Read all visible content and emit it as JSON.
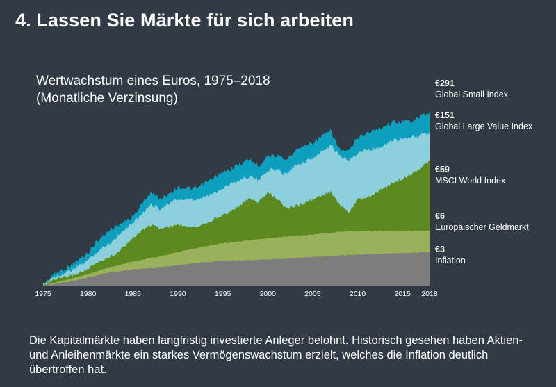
{
  "slide_title": "4. Lassen Sie Märkte für sich arbeiten",
  "caption": "Die Kapitalmärkte haben langfristig investierte Anleger belohnt. Historisch gesehen haben Aktien- und Anleihenmärkte ein starkes Vermögenswachstum erzielt, welches die Inflation deutlich übertroffen hat.",
  "colors": {
    "background": "#323b45",
    "small": "#0e9fbe",
    "large_value": "#8ccfdd",
    "msci": "#5c8a1f",
    "geldmarkt": "#98b15a",
    "inflation": "#7d7d7d"
  },
  "chart_data": {
    "type": "area",
    "title_line1": "Wertwachstum eines Euros, 1975–2018",
    "title_line2": "(Monatliche Verzinsung)",
    "x_ticks": [
      "1975",
      "1980",
      "1985",
      "1990",
      "1995",
      "2000",
      "2005",
      "2010",
      "2015",
      "2018"
    ],
    "xlim": [
      1975,
      2018
    ],
    "stacking": "overlapping",
    "legend_placement": "right",
    "grid": false,
    "series": [
      {
        "name": "Global Small Index",
        "end_label": "€291",
        "color_key": "small",
        "x": [
          1975,
          1976,
          1978,
          1980,
          1981,
          1983,
          1984,
          1985,
          1986,
          1987,
          1988,
          1990,
          1992,
          1994,
          1996,
          1998,
          1999,
          2000,
          2001,
          2002,
          2003,
          2005,
          2007,
          2008,
          2009,
          2010,
          2011,
          2012,
          2014,
          2016,
          2018
        ],
        "y": [
          1,
          1.4,
          1.9,
          2.9,
          4.3,
          7.0,
          7.9,
          9.5,
          14.5,
          21.5,
          16.9,
          24.9,
          23.6,
          34.0,
          46.8,
          62.3,
          50.2,
          71.5,
          69.3,
          60.3,
          83.9,
          108.7,
          157.0,
          85.4,
          79.1,
          128.1,
          147.5,
          162.0,
          211.7,
          218.8,
          291
        ]
      },
      {
        "name": "Global Large Value Index",
        "end_label": "€151",
        "color_key": "large_value",
        "x": [
          1975,
          1976,
          1978,
          1980,
          1981,
          1983,
          1984,
          1985,
          1986,
          1987,
          1988,
          1990,
          1992,
          1994,
          1996,
          1998,
          1999,
          2000,
          2001,
          2002,
          2003,
          2005,
          2007,
          2008,
          2009,
          2010,
          2011,
          2012,
          2014,
          2016,
          2018
        ],
        "y": [
          1,
          1.3,
          1.6,
          2.3,
          3.0,
          4.6,
          6.3,
          7.8,
          10.6,
          14.1,
          12.5,
          16.9,
          16.1,
          20.6,
          28.6,
          36.0,
          31.3,
          43.9,
          44.8,
          37.8,
          50.9,
          64.4,
          97.6,
          68.5,
          61.9,
          75.5,
          85.3,
          88.5,
          118.3,
          126.2,
          151
        ]
      },
      {
        "name": "MSCI World Index",
        "end_label": "€59",
        "color_key": "msci",
        "x": [
          1975,
          1976,
          1978,
          1980,
          1981,
          1983,
          1984,
          1985,
          1986,
          1987,
          1988,
          1990,
          1992,
          1994,
          1996,
          1998,
          1999,
          2000,
          2001,
          2002,
          2003,
          2005,
          2007,
          2008,
          2009,
          2010,
          2011,
          2012,
          2014,
          2016,
          2018
        ],
        "y": [
          1,
          1.2,
          1.35,
          1.7,
          2.1,
          2.8,
          3.6,
          4.7,
          6.1,
          7.4,
          6.4,
          7.3,
          6.9,
          8.7,
          11.5,
          17.1,
          15.4,
          21.0,
          17.5,
          12.4,
          13.6,
          16.4,
          21.4,
          13.8,
          10.9,
          16.7,
          17.6,
          20.4,
          29.5,
          37.4,
          59
        ]
      },
      {
        "name": "Europäischer Geldmarkt",
        "end_label": "€6",
        "color_key": "geldmarkt",
        "x": [
          1975,
          1978,
          1980,
          1982,
          1985,
          1988,
          1990,
          1993,
          1995,
          1998,
          2000,
          2003,
          2005,
          2008,
          2009,
          2012,
          2015,
          2018
        ],
        "y": [
          1,
          1.25,
          1.45,
          1.75,
          2.2,
          2.6,
          3.0,
          3.6,
          4.0,
          4.4,
          4.7,
          5.1,
          5.3,
          5.8,
          5.9,
          5.95,
          6.0,
          6.0
        ]
      },
      {
        "name": "Inflation",
        "end_label": "€3",
        "color_key": "inflation",
        "x": [
          1975,
          1978,
          1980,
          1982,
          1985,
          1988,
          1990,
          1993,
          1995,
          1998,
          2000,
          2003,
          2005,
          2008,
          2010,
          2013,
          2015,
          2018
        ],
        "y": [
          1,
          1.15,
          1.3,
          1.5,
          1.7,
          1.8,
          1.95,
          2.15,
          2.25,
          2.3,
          2.35,
          2.45,
          2.55,
          2.7,
          2.75,
          2.85,
          2.88,
          3.0
        ]
      }
    ]
  }
}
